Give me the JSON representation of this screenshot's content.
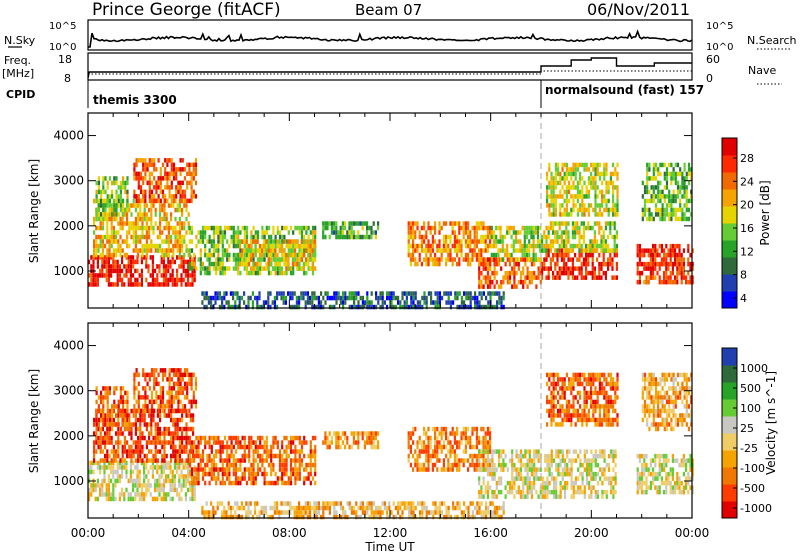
{
  "header": {
    "station": "Prince George (fitACF)",
    "beam": "Beam 07",
    "date": "06/Nov/2011"
  },
  "top_panels": {
    "nsky_label": "N.Sky",
    "nsearch_label": "N.Search",
    "noise_tick_top": "10^5",
    "noise_tick_bottom": "10^0",
    "freq_label": "Freq.",
    "freq_unit": "[MHz]",
    "freq_ticks": [
      "18",
      "8"
    ],
    "nave_label": "Nave",
    "nave_ticks": [
      "60",
      "0"
    ],
    "cpid_label": "CPID",
    "cpid_1": "themis 3300",
    "cpid_2": "normalsound (fast) 157"
  },
  "chart_data": [
    {
      "type": "heatmap",
      "panel": "power",
      "ylabel": "Slant Range [km]",
      "ylim": [
        180,
        4500
      ],
      "yticks": [
        "1000",
        "2000",
        "3000",
        "4000"
      ],
      "colorbar_label": "Power [dB]",
      "colorbar_ticks": [
        "28",
        "24",
        "20",
        "16",
        "12",
        "8",
        "4"
      ],
      "colors": [
        "#0000ff",
        "#2040b0",
        "#2f6a3a",
        "#27a327",
        "#66cc33",
        "#e6d400",
        "#f5a300",
        "#f06a00",
        "#ff2a00",
        "#e00000"
      ],
      "regions": [
        {
          "t0": 0.0,
          "t1": 4.2,
          "r0": 700,
          "r1": 1350,
          "level": 0.92
        },
        {
          "t0": 0.2,
          "t1": 4.0,
          "r0": 1400,
          "r1": 2600,
          "level": 0.62
        },
        {
          "t0": 1.8,
          "t1": 4.3,
          "r0": 2600,
          "r1": 3500,
          "level": 0.8
        },
        {
          "t0": 0.3,
          "t1": 1.6,
          "r0": 2200,
          "r1": 3100,
          "level": 0.45
        },
        {
          "t0": 4.0,
          "t1": 9.0,
          "r0": 1000,
          "r1": 2000,
          "level": 0.45
        },
        {
          "t0": 6.0,
          "t1": 9.0,
          "r0": 1100,
          "r1": 1700,
          "level": 0.6
        },
        {
          "t0": 9.3,
          "t1": 11.5,
          "r0": 1800,
          "r1": 2100,
          "level": 0.35
        },
        {
          "t0": 12.7,
          "t1": 16.0,
          "r0": 1200,
          "r1": 2100,
          "level": 0.7
        },
        {
          "t0": 15.5,
          "t1": 18.0,
          "r0": 700,
          "r1": 1300,
          "level": 0.78
        },
        {
          "t0": 16.0,
          "t1": 18.0,
          "r0": 1300,
          "r1": 2000,
          "level": 0.5
        },
        {
          "t0": 18.0,
          "t1": 21.0,
          "r0": 900,
          "r1": 1500,
          "level": 0.88
        },
        {
          "t0": 18.0,
          "t1": 21.0,
          "r0": 1500,
          "r1": 2100,
          "level": 0.52
        },
        {
          "t0": 18.2,
          "t1": 21.0,
          "r0": 2300,
          "r1": 3400,
          "level": 0.55
        },
        {
          "t0": 21.8,
          "t1": 24.0,
          "r0": 800,
          "r1": 1600,
          "level": 0.87
        },
        {
          "t0": 22.0,
          "t1": 24.0,
          "r0": 2200,
          "r1": 3400,
          "level": 0.42
        },
        {
          "t0": 4.5,
          "t1": 16.5,
          "r0": 200,
          "r1": 550,
          "level": 0.2
        }
      ]
    },
    {
      "type": "heatmap",
      "panel": "velocity",
      "ylabel": "Slant Range [km]",
      "ylim": [
        180,
        4500
      ],
      "yticks": [
        "1000",
        "2000",
        "3000",
        "4000"
      ],
      "colorbar_label": "Velocity [m s^-1]",
      "colorbar_ticks": [
        "1000",
        "500",
        "100",
        "25",
        "-25",
        "-100",
        "-500",
        "-1000"
      ],
      "colors": [
        "#e00000",
        "#ff3c00",
        "#f07800",
        "#f5a300",
        "#f0cc66",
        "#c8c8c0",
        "#66cc33",
        "#27a327",
        "#2f6a3a",
        "#2040b0"
      ],
      "regions": [
        {
          "t0": 0.0,
          "t1": 4.2,
          "r0": 650,
          "r1": 1450,
          "level": 0.5
        },
        {
          "t0": 0.2,
          "t1": 4.2,
          "r0": 1450,
          "r1": 2600,
          "level": 0.15
        },
        {
          "t0": 1.8,
          "t1": 4.3,
          "r0": 2600,
          "r1": 3500,
          "level": 0.18
        },
        {
          "t0": 0.3,
          "t1": 1.6,
          "r0": 2200,
          "r1": 3100,
          "level": 0.22
        },
        {
          "t0": 4.0,
          "t1": 9.0,
          "r0": 1000,
          "r1": 2000,
          "level": 0.22
        },
        {
          "t0": 9.3,
          "t1": 11.5,
          "r0": 1800,
          "r1": 2100,
          "level": 0.3
        },
        {
          "t0": 12.7,
          "t1": 16.0,
          "r0": 1300,
          "r1": 2200,
          "level": 0.28
        },
        {
          "t0": 15.5,
          "t1": 21.0,
          "r0": 700,
          "r1": 1700,
          "level": 0.5
        },
        {
          "t0": 18.2,
          "t1": 21.0,
          "r0": 2300,
          "r1": 3400,
          "level": 0.22
        },
        {
          "t0": 21.8,
          "t1": 24.0,
          "r0": 800,
          "r1": 1600,
          "level": 0.5
        },
        {
          "t0": 22.0,
          "t1": 24.0,
          "r0": 2200,
          "r1": 3400,
          "level": 0.35
        },
        {
          "t0": 4.5,
          "t1": 16.5,
          "r0": 200,
          "r1": 550,
          "level": 0.38
        }
      ]
    }
  ],
  "time_axis": {
    "xlabel": "Time UT",
    "ticks": [
      "00:00",
      "04:00",
      "08:00",
      "12:00",
      "16:00",
      "20:00",
      "00:00"
    ],
    "xlim_hours": [
      0,
      24
    ],
    "cpid_change_hour": 18.0
  }
}
